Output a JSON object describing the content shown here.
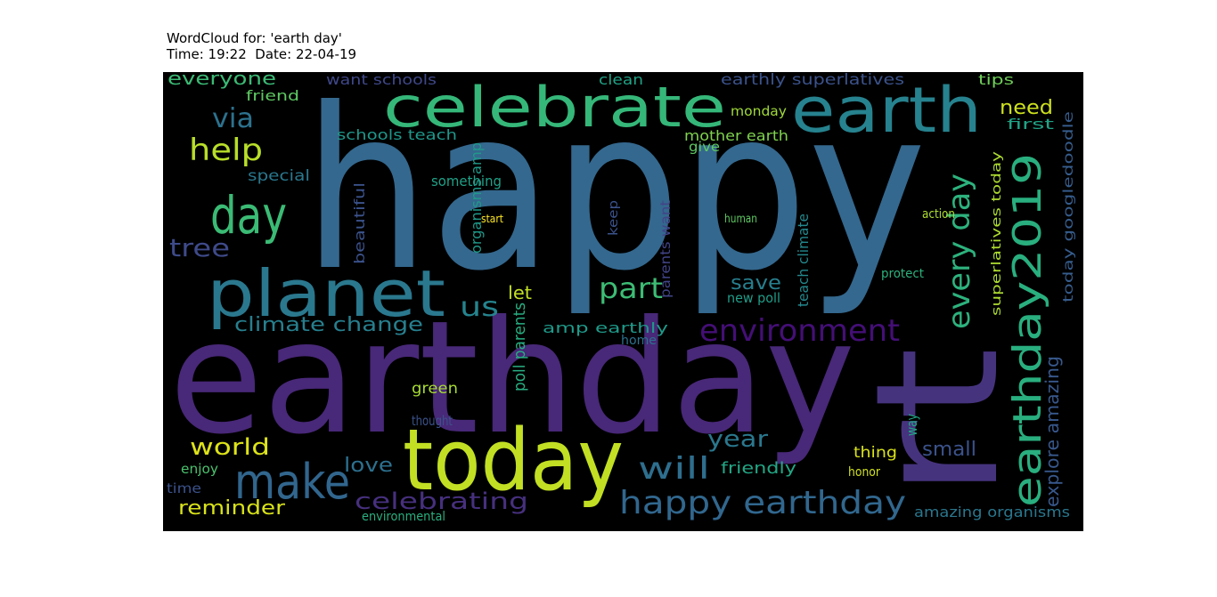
{
  "chart_data": {
    "type": "wordcloud",
    "title": "WordCloud for: 'earth day'",
    "subtitle": "Time: 19:22  Date: 22-04-19",
    "background": "#000000",
    "words": [
      {
        "text": "happy",
        "color": "#34688e"
      },
      {
        "text": "earthday",
        "color": "#482878"
      },
      {
        "text": "rt",
        "color": "#46337e"
      },
      {
        "text": "today",
        "color": "#c2df23"
      },
      {
        "text": "celebrate",
        "color": "#35b779"
      },
      {
        "text": "earth",
        "color": "#26828e"
      },
      {
        "text": "planet",
        "color": "#2a788e"
      },
      {
        "text": "day",
        "color": "#3bbb75"
      },
      {
        "text": "make",
        "color": "#31668e"
      },
      {
        "text": "help",
        "color": "#b8de29"
      },
      {
        "text": "via",
        "color": "#2c728e"
      },
      {
        "text": "tree",
        "color": "#3e4a89"
      },
      {
        "text": "us",
        "color": "#25848e"
      },
      {
        "text": "part",
        "color": "#3dbc74"
      },
      {
        "text": "environment",
        "color": "#440f76"
      },
      {
        "text": "climate change",
        "color": "#277f8e"
      },
      {
        "text": "earthday2019",
        "color": "#29af7f"
      },
      {
        "text": "every day",
        "color": "#2db27d"
      },
      {
        "text": "happy earthday",
        "color": "#31678e"
      },
      {
        "text": "will",
        "color": "#2e6e8e"
      },
      {
        "text": "year",
        "color": "#2a788e"
      },
      {
        "text": "world",
        "color": "#dde318"
      },
      {
        "text": "love",
        "color": "#2d708e"
      },
      {
        "text": "celebrating",
        "color": "#46307e"
      },
      {
        "text": "reminder",
        "color": "#d8e219"
      },
      {
        "text": "everyone",
        "color": "#3bbb75"
      },
      {
        "text": "want schools",
        "color": "#3f4889"
      },
      {
        "text": "clean",
        "color": "#20a386"
      },
      {
        "text": "earthly superlatives",
        "color": "#3b528b"
      },
      {
        "text": "tips",
        "color": "#6ece58"
      },
      {
        "text": "need",
        "color": "#cde11d"
      },
      {
        "text": "first",
        "color": "#20a386"
      },
      {
        "text": "friend",
        "color": "#5ec962"
      },
      {
        "text": "monday",
        "color": "#a0da39"
      },
      {
        "text": "mother earth",
        "color": "#7fd34e"
      },
      {
        "text": "give",
        "color": "#5ec962"
      },
      {
        "text": "schools teach",
        "color": "#1f988b"
      },
      {
        "text": "special",
        "color": "#2a788e"
      },
      {
        "text": "something",
        "color": "#1fa187"
      },
      {
        "text": "save",
        "color": "#277f8e"
      },
      {
        "text": "new poll",
        "color": "#1f9e89"
      },
      {
        "text": "let",
        "color": "#c2df23"
      },
      {
        "text": "amp earthly",
        "color": "#1f9a8a"
      },
      {
        "text": "small",
        "color": "#3b528b"
      },
      {
        "text": "thing",
        "color": "#d8e219"
      },
      {
        "text": "friendly",
        "color": "#22a785"
      },
      {
        "text": "explore amazing",
        "color": "#38588c"
      },
      {
        "text": "amazing organisms",
        "color": "#2a778e"
      },
      {
        "text": "green",
        "color": "#a8db34"
      },
      {
        "text": "thought",
        "color": "#3b528b"
      },
      {
        "text": "enjoy",
        "color": "#4ac16d"
      },
      {
        "text": "time",
        "color": "#3b528b"
      },
      {
        "text": "environmental",
        "color": "#29af7f"
      },
      {
        "text": "action",
        "color": "#addc30"
      },
      {
        "text": "protect",
        "color": "#2db27d"
      },
      {
        "text": "human",
        "color": "#5ec962"
      },
      {
        "text": "start",
        "color": "#fde725"
      },
      {
        "text": "home",
        "color": "#2c728e"
      },
      {
        "text": "honor",
        "color": "#d0e11c"
      },
      {
        "text": "way",
        "color": "#22a785"
      },
      {
        "text": "beautiful",
        "color": "#3b528b"
      },
      {
        "text": "organisms amp",
        "color": "#1f9a8a"
      },
      {
        "text": "poll parents",
        "color": "#27ad81"
      },
      {
        "text": "parents want",
        "color": "#414487"
      },
      {
        "text": "teach climate",
        "color": "#23898e"
      },
      {
        "text": "superlatives today",
        "color": "#addc30"
      },
      {
        "text": "today googledoodle",
        "color": "#365d8d"
      },
      {
        "text": "keep",
        "color": "#3b528b"
      }
    ]
  }
}
